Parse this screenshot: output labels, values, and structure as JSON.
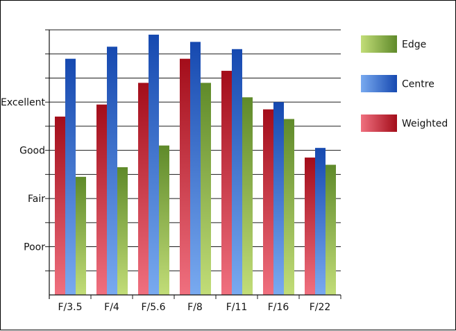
{
  "chart_data": {
    "type": "bar",
    "categories": [
      "F/3.5",
      "F/4",
      "F/5.6",
      "F/8",
      "F/11",
      "F/16",
      "F/22"
    ],
    "series": [
      {
        "name": "Weighted",
        "values": [
          7.4,
          7.9,
          8.8,
          9.8,
          9.3,
          7.7,
          5.7
        ]
      },
      {
        "name": "Centre",
        "values": [
          9.8,
          10.3,
          10.8,
          10.5,
          10.2,
          8.0,
          6.1
        ]
      },
      {
        "name": "Edge",
        "values": [
          4.9,
          5.3,
          6.2,
          8.8,
          8.2,
          7.3,
          5.4
        ]
      }
    ],
    "ylim": [
      0,
      11
    ],
    "y_tick_labels": [
      {
        "label": "Poor",
        "value": 2
      },
      {
        "label": "Fair",
        "value": 4
      },
      {
        "label": "Good",
        "value": 6
      },
      {
        "label": "Excellent",
        "value": 8
      }
    ],
    "gridlines_at": [
      1,
      2,
      3,
      4,
      5,
      6,
      7,
      8,
      9,
      10,
      11
    ],
    "grid": true,
    "legend": {
      "placement": "right",
      "entries": [
        "Edge",
        "Centre",
        "Weighted"
      ]
    },
    "colors": {
      "Weighted": {
        "top": "#a30d1a",
        "bottom": "#f0707f"
      },
      "Centre": {
        "top": "#1649b0",
        "bottom": "#79aaf0"
      },
      "Edge": {
        "top": "#5f8a2a",
        "bottom": "#c2dd78"
      }
    }
  }
}
